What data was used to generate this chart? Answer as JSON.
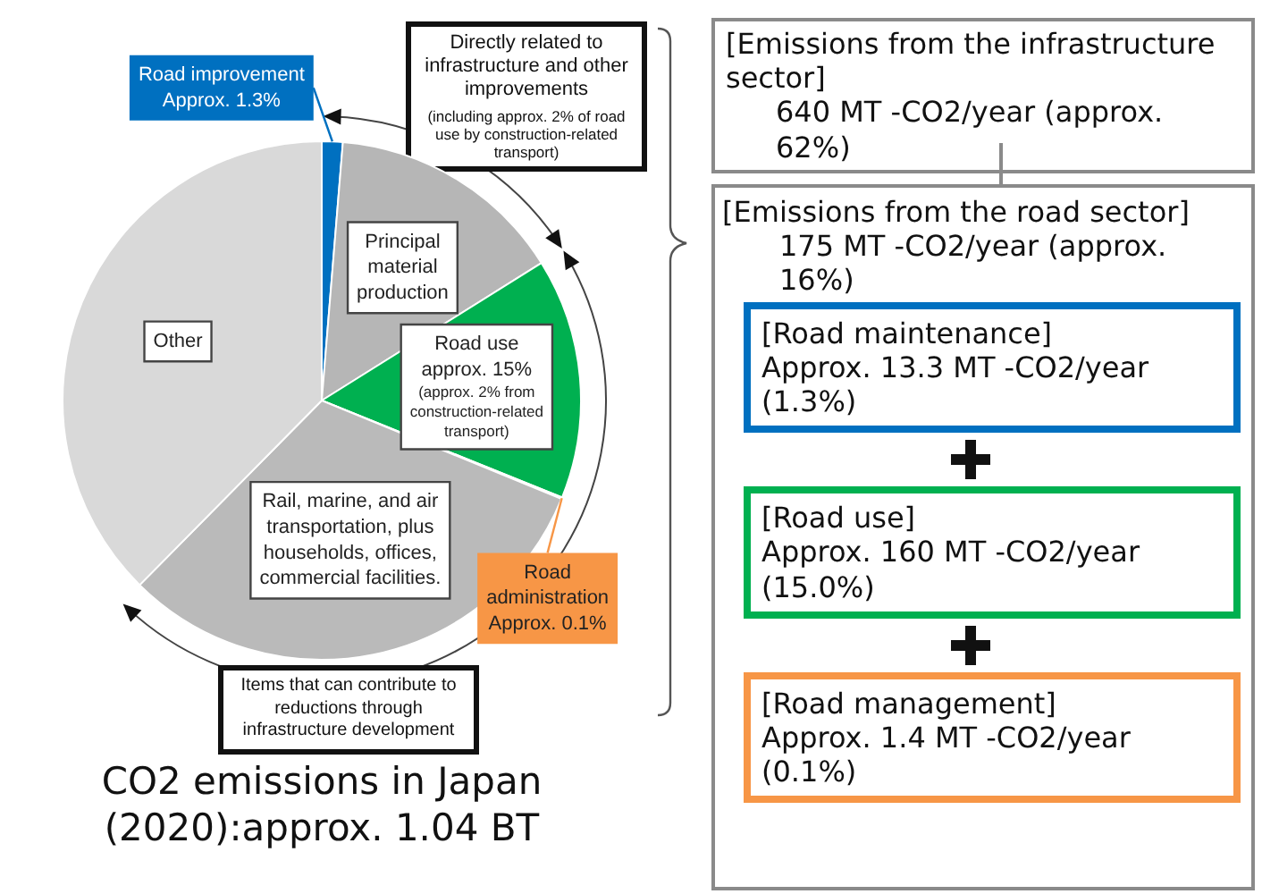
{
  "chart_data": {
    "type": "pie",
    "title": "CO2 emissions in Japan (2020):approx. 1.04 BT",
    "categories": [
      "Road improvement",
      "Principal material production",
      "Road use",
      "Road administration",
      "Rail, marine, and air transportation, plus households, offices, commercial facilities.",
      "Other"
    ],
    "values": [
      1.3,
      14.8,
      15,
      0.1,
      31.2,
      37.6
    ],
    "colors": [
      "#0070c0",
      "#b6b6b6",
      "#00b050",
      "#ffc000",
      "#bababa",
      "#d9d9d9"
    ],
    "value_labels": [
      "Approx. 1.3%",
      null,
      "approx. 15%",
      "Approx. 0.1%",
      null,
      null
    ],
    "annotations": [
      "(approx. 2% from construction-related transport)",
      "Directly related to infrastructure and other improvements",
      "(including approx. 2% of road use by construction-related transport)",
      "Items that can contribute to reductions through infrastructure development",
      "[Emissions from the infrastructure sector]",
      "640 MT -CO2/year (approx. 62%)",
      "[Emissions from the road sector]",
      "175 MT -CO2/year  (approx. 16%)",
      "[Road maintenance]",
      "Approx. 13.3 MT -CO2/year (1.3%)",
      "[Road use]",
      "Approx. 160 MT -CO2/year (15.0%)",
      "[Road management]",
      "Approx. 1.4 MT -CO2/year (0.1%)"
    ]
  }
}
